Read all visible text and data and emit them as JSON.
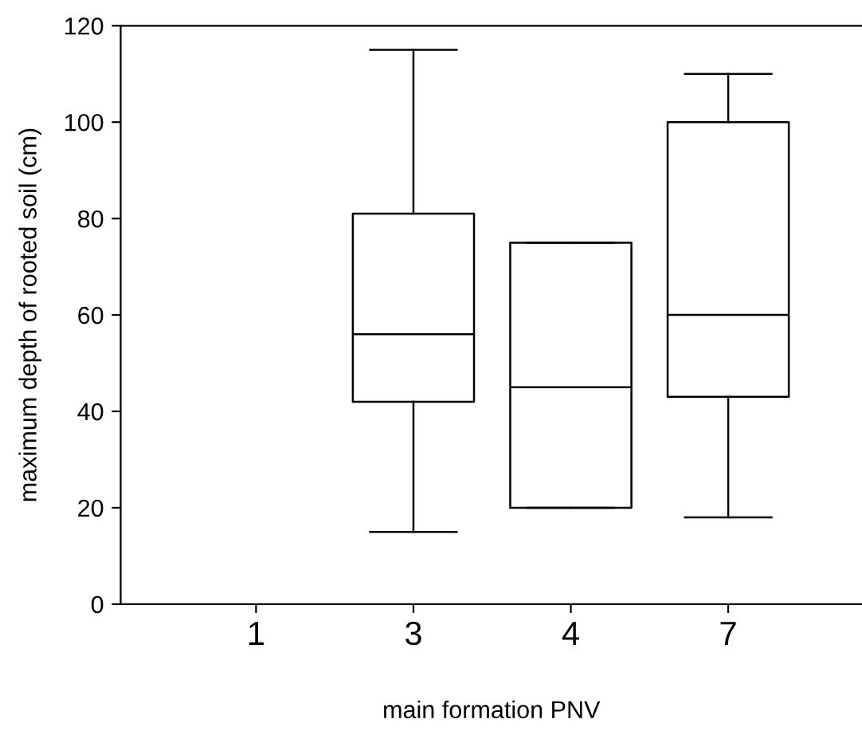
{
  "chart_data": {
    "type": "box",
    "xlabel": "main formation PNV",
    "ylabel": "maximum depth of rooted soil (cm)",
    "categories": [
      "1",
      "3",
      "4",
      "7"
    ],
    "boxes": [
      null,
      {
        "low": 15,
        "q1": 42,
        "median": 56,
        "q3": 81,
        "high": 115
      },
      {
        "low": 20,
        "q1": 20,
        "median": 45,
        "q3": 75,
        "high": 75
      },
      {
        "low": 18,
        "q1": 43,
        "median": 60,
        "q3": 100,
        "high": 110
      }
    ],
    "ylim": [
      0,
      120
    ],
    "yticks": [
      0,
      20,
      40,
      60,
      80,
      100,
      120
    ],
    "grid": false,
    "legend": false
  }
}
